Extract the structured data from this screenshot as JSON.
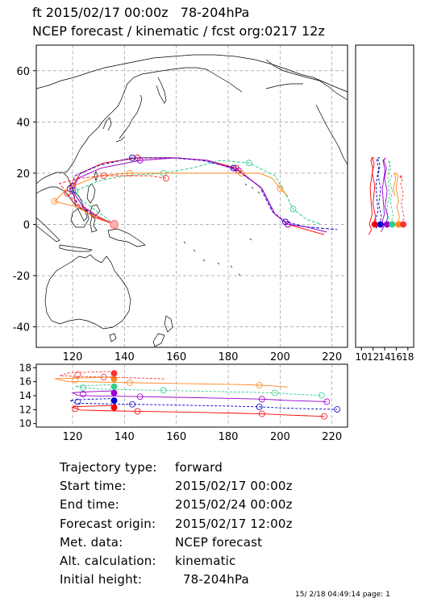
{
  "header": {
    "line1": "ft 2015/02/17 00:00z   78-204hPa",
    "line2": "NCEP forecast / kinematic / fcst org:0217 12z"
  },
  "map": {
    "lon_ticks": [
      "120",
      "140",
      "160",
      "180",
      "200",
      "220"
    ],
    "lat_ticks": [
      "60",
      "40",
      "20",
      "0",
      "-20",
      "-40"
    ],
    "lon_range": [
      106,
      226
    ],
    "lat_range": [
      -48,
      70
    ]
  },
  "side_panel": {
    "x_ticks": [
      "10",
      "12",
      "14",
      "16",
      "18"
    ]
  },
  "height_panel": {
    "y_ticks": [
      "18",
      "16",
      "14",
      "12",
      "10"
    ],
    "x_ticks": [
      "120",
      "140",
      "160",
      "180",
      "200",
      "220"
    ]
  },
  "trajectories": [
    {
      "color": "#ff0000",
      "lons": [
        136,
        128,
        121,
        120,
        123,
        132,
        145,
        160,
        172,
        183,
        193,
        198,
        203,
        210,
        217
      ],
      "lats": [
        0,
        3,
        8,
        15,
        20,
        24,
        26,
        26,
        25,
        22,
        14,
        4,
        0,
        -2,
        -4
      ]
    },
    {
      "color": "#0000cc",
      "lons": [
        136,
        129,
        122,
        119,
        121,
        130,
        143,
        158,
        170,
        182,
        192,
        197,
        202,
        210,
        222
      ],
      "lats": [
        0,
        3,
        8,
        14,
        19,
        23,
        26,
        26,
        25,
        22,
        15,
        5,
        1,
        -1,
        -2
      ]
    },
    {
      "color": "#9900cc",
      "lons": [
        136,
        130,
        124,
        120,
        122,
        131,
        146,
        160,
        172,
        184,
        193,
        198,
        203,
        210,
        218
      ],
      "lats": [
        0,
        3,
        7,
        13,
        18,
        22,
        25,
        26,
        25,
        21,
        14,
        4,
        0,
        -1,
        -3
      ]
    },
    {
      "color": "#33cc88",
      "lons": [
        136,
        131,
        124,
        121,
        130,
        140,
        155,
        166,
        177,
        188,
        198,
        202,
        205,
        210,
        216
      ],
      "lats": [
        0,
        4,
        9,
        13,
        17,
        19,
        20,
        22,
        25,
        24,
        19,
        12,
        6,
        2,
        0
      ]
    },
    {
      "color": "#ff8822",
      "lons": [
        136,
        129,
        121,
        113,
        118,
        130,
        142,
        157,
        170,
        185,
        192,
        197,
        200,
        203
      ],
      "lats": [
        0,
        3,
        7,
        9,
        14,
        19,
        20,
        20,
        20,
        20,
        20,
        18,
        14,
        11
      ]
    },
    {
      "color": "#ff3333",
      "lons": [
        136,
        130,
        122,
        118,
        115,
        123,
        132,
        142,
        150,
        156
      ],
      "lats": [
        0,
        3,
        8,
        12,
        16,
        18,
        19,
        19,
        19,
        18
      ]
    }
  ],
  "info": {
    "rows": [
      {
        "label": "Trajectory type:",
        "value": "forward"
      },
      {
        "label": "Start time:",
        "value": "2015/02/17 00:00z"
      },
      {
        "label": "End time:",
        "value": "2015/02/24 00:00z"
      },
      {
        "label": "Forecast origin:",
        "value": "2015/02/17 12:00z"
      },
      {
        "label": "Met. data:",
        "value": "NCEP forecast"
      },
      {
        "label": "Alt. calculation:",
        "value": "kinematic"
      },
      {
        "label": "Initial height:",
        "value": "  78-204hPa"
      }
    ]
  },
  "footer": "15/ 2/18 04:49:14 page: 1"
}
